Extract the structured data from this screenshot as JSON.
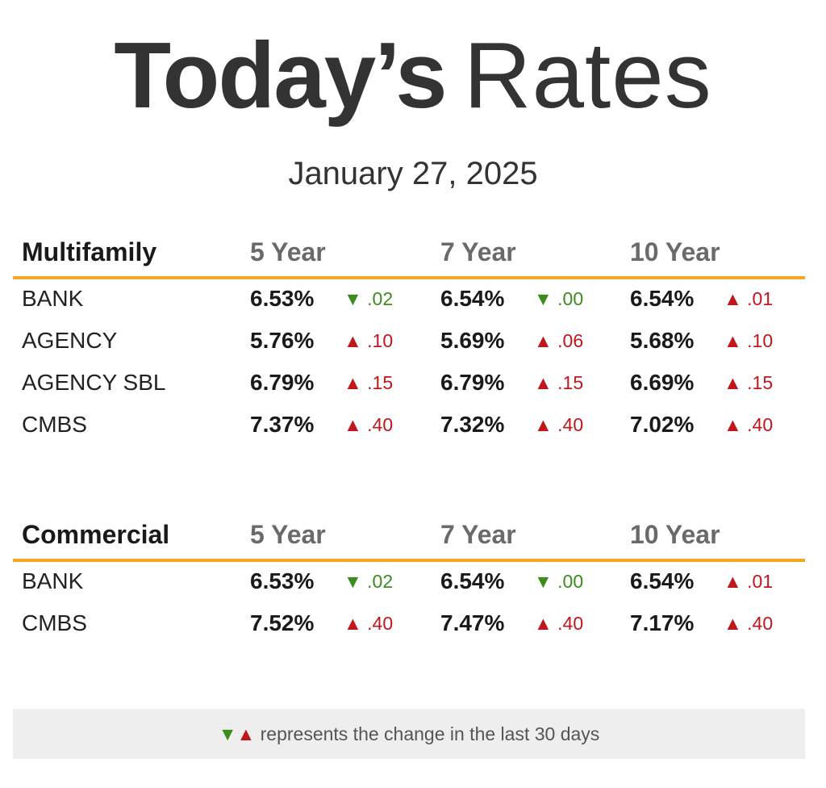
{
  "title": {
    "bold": "Today’s",
    "light": "Rates"
  },
  "date": "January 27, 2025",
  "sections": [
    {
      "name": "Multifamily",
      "columns": [
        "5 Year",
        "7 Year",
        "10 Year"
      ],
      "rows": [
        {
          "label": "BANK",
          "cells": [
            {
              "rate": "6.53%",
              "dir": "down",
              "change": ".02"
            },
            {
              "rate": "6.54%",
              "dir": "down",
              "change": ".00"
            },
            {
              "rate": "6.54%",
              "dir": "up",
              "change": ".01"
            }
          ]
        },
        {
          "label": "AGENCY",
          "cells": [
            {
              "rate": "5.76%",
              "dir": "up",
              "change": ".10"
            },
            {
              "rate": "5.69%",
              "dir": "up",
              "change": ".06"
            },
            {
              "rate": "5.68%",
              "dir": "up",
              "change": ".10"
            }
          ]
        },
        {
          "label": "AGENCY SBL",
          "cells": [
            {
              "rate": "6.79%",
              "dir": "up",
              "change": ".15"
            },
            {
              "rate": "6.79%",
              "dir": "up",
              "change": ".15"
            },
            {
              "rate": "6.69%",
              "dir": "up",
              "change": ".15"
            }
          ]
        },
        {
          "label": "CMBS",
          "cells": [
            {
              "rate": "7.37%",
              "dir": "up",
              "change": ".40"
            },
            {
              "rate": "7.32%",
              "dir": "up",
              "change": ".40"
            },
            {
              "rate": "7.02%",
              "dir": "up",
              "change": ".40"
            }
          ]
        }
      ]
    },
    {
      "name": "Commercial",
      "columns": [
        "5 Year",
        "7 Year",
        "10 Year"
      ],
      "rows": [
        {
          "label": "BANK",
          "cells": [
            {
              "rate": "6.53%",
              "dir": "down",
              "change": ".02"
            },
            {
              "rate": "6.54%",
              "dir": "down",
              "change": ".00"
            },
            {
              "rate": "6.54%",
              "dir": "up",
              "change": ".01"
            }
          ]
        },
        {
          "label": "CMBS",
          "cells": [
            {
              "rate": "7.52%",
              "dir": "up",
              "change": ".40"
            },
            {
              "rate": "7.47%",
              "dir": "up",
              "change": ".40"
            },
            {
              "rate": "7.17%",
              "dir": "up",
              "change": ".40"
            }
          ]
        }
      ]
    }
  ],
  "footer": {
    "down_glyph": "▼",
    "up_glyph": "▲",
    "text": "represents the change in the last 30 days"
  },
  "colors": {
    "accent": "#f5a623",
    "down": "#3c8c1e",
    "up": "#c0161c"
  }
}
